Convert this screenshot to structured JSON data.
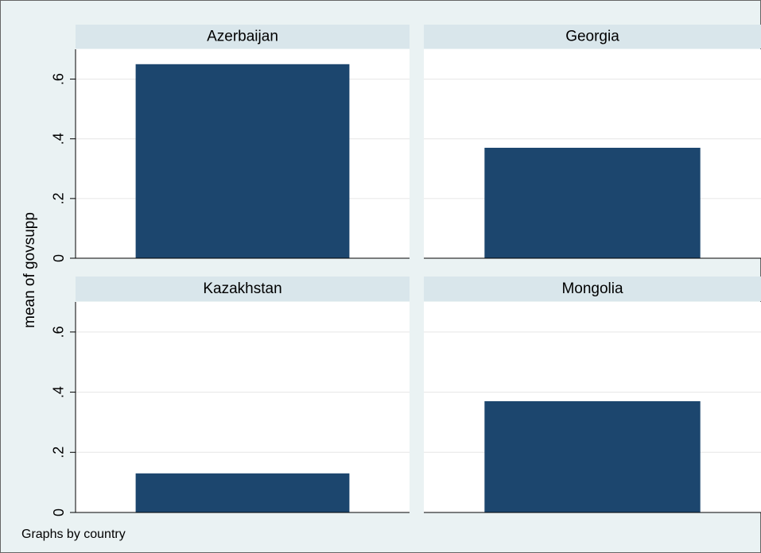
{
  "chart_data": {
    "type": "bar",
    "ylabel": "mean of govsupp",
    "note": "Graphs by country",
    "color": "#1c466e",
    "grid": true,
    "ylim": [
      0,
      0.7
    ],
    "yticks": [
      0,
      {
        "value": 0.2,
        "label": ".2"
      },
      {
        "value": 0.4,
        "label": ".4"
      },
      {
        "value": 0.6,
        "label": ".6"
      }
    ],
    "panels": [
      {
        "title": "Azerbaijan",
        "values": [
          0.65
        ]
      },
      {
        "title": "Georgia",
        "values": [
          0.37
        ]
      },
      {
        "title": "Kazakhstan",
        "values": [
          0.13
        ]
      },
      {
        "title": "Mongolia",
        "values": [
          0.37
        ]
      }
    ]
  }
}
